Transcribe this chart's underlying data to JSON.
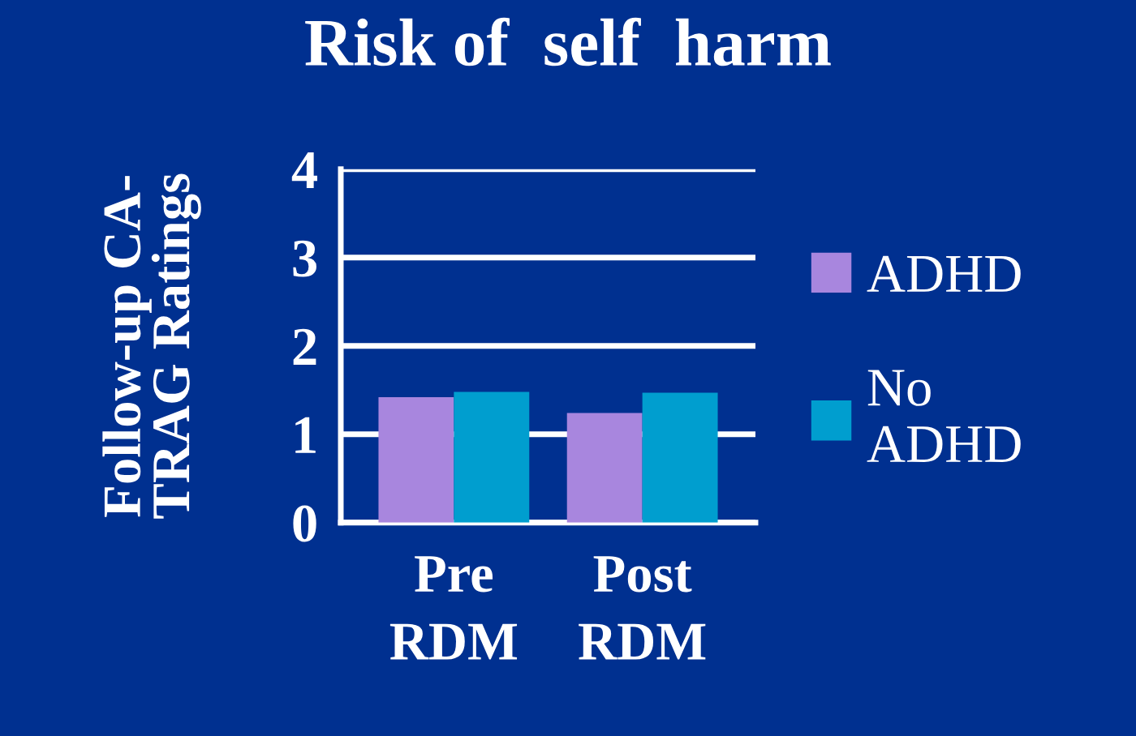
{
  "chart_data": {
    "type": "bar",
    "title": "Risk of  self  harm",
    "ylabel": "Follow-up CA-\nTRAG Ratings",
    "categories": [
      "Pre\nRDM",
      "Post\nRDM"
    ],
    "series": [
      {
        "name": "ADHD",
        "color": "#a886de",
        "values": [
          1.42,
          1.24
        ]
      },
      {
        "name": "No\nADHD",
        "color": "#009ecf",
        "values": [
          1.48,
          1.47
        ]
      }
    ],
    "ylim": [
      0,
      4
    ],
    "yticks": [
      0,
      1,
      2,
      3,
      4
    ],
    "grid": "y",
    "legend": "right"
  }
}
